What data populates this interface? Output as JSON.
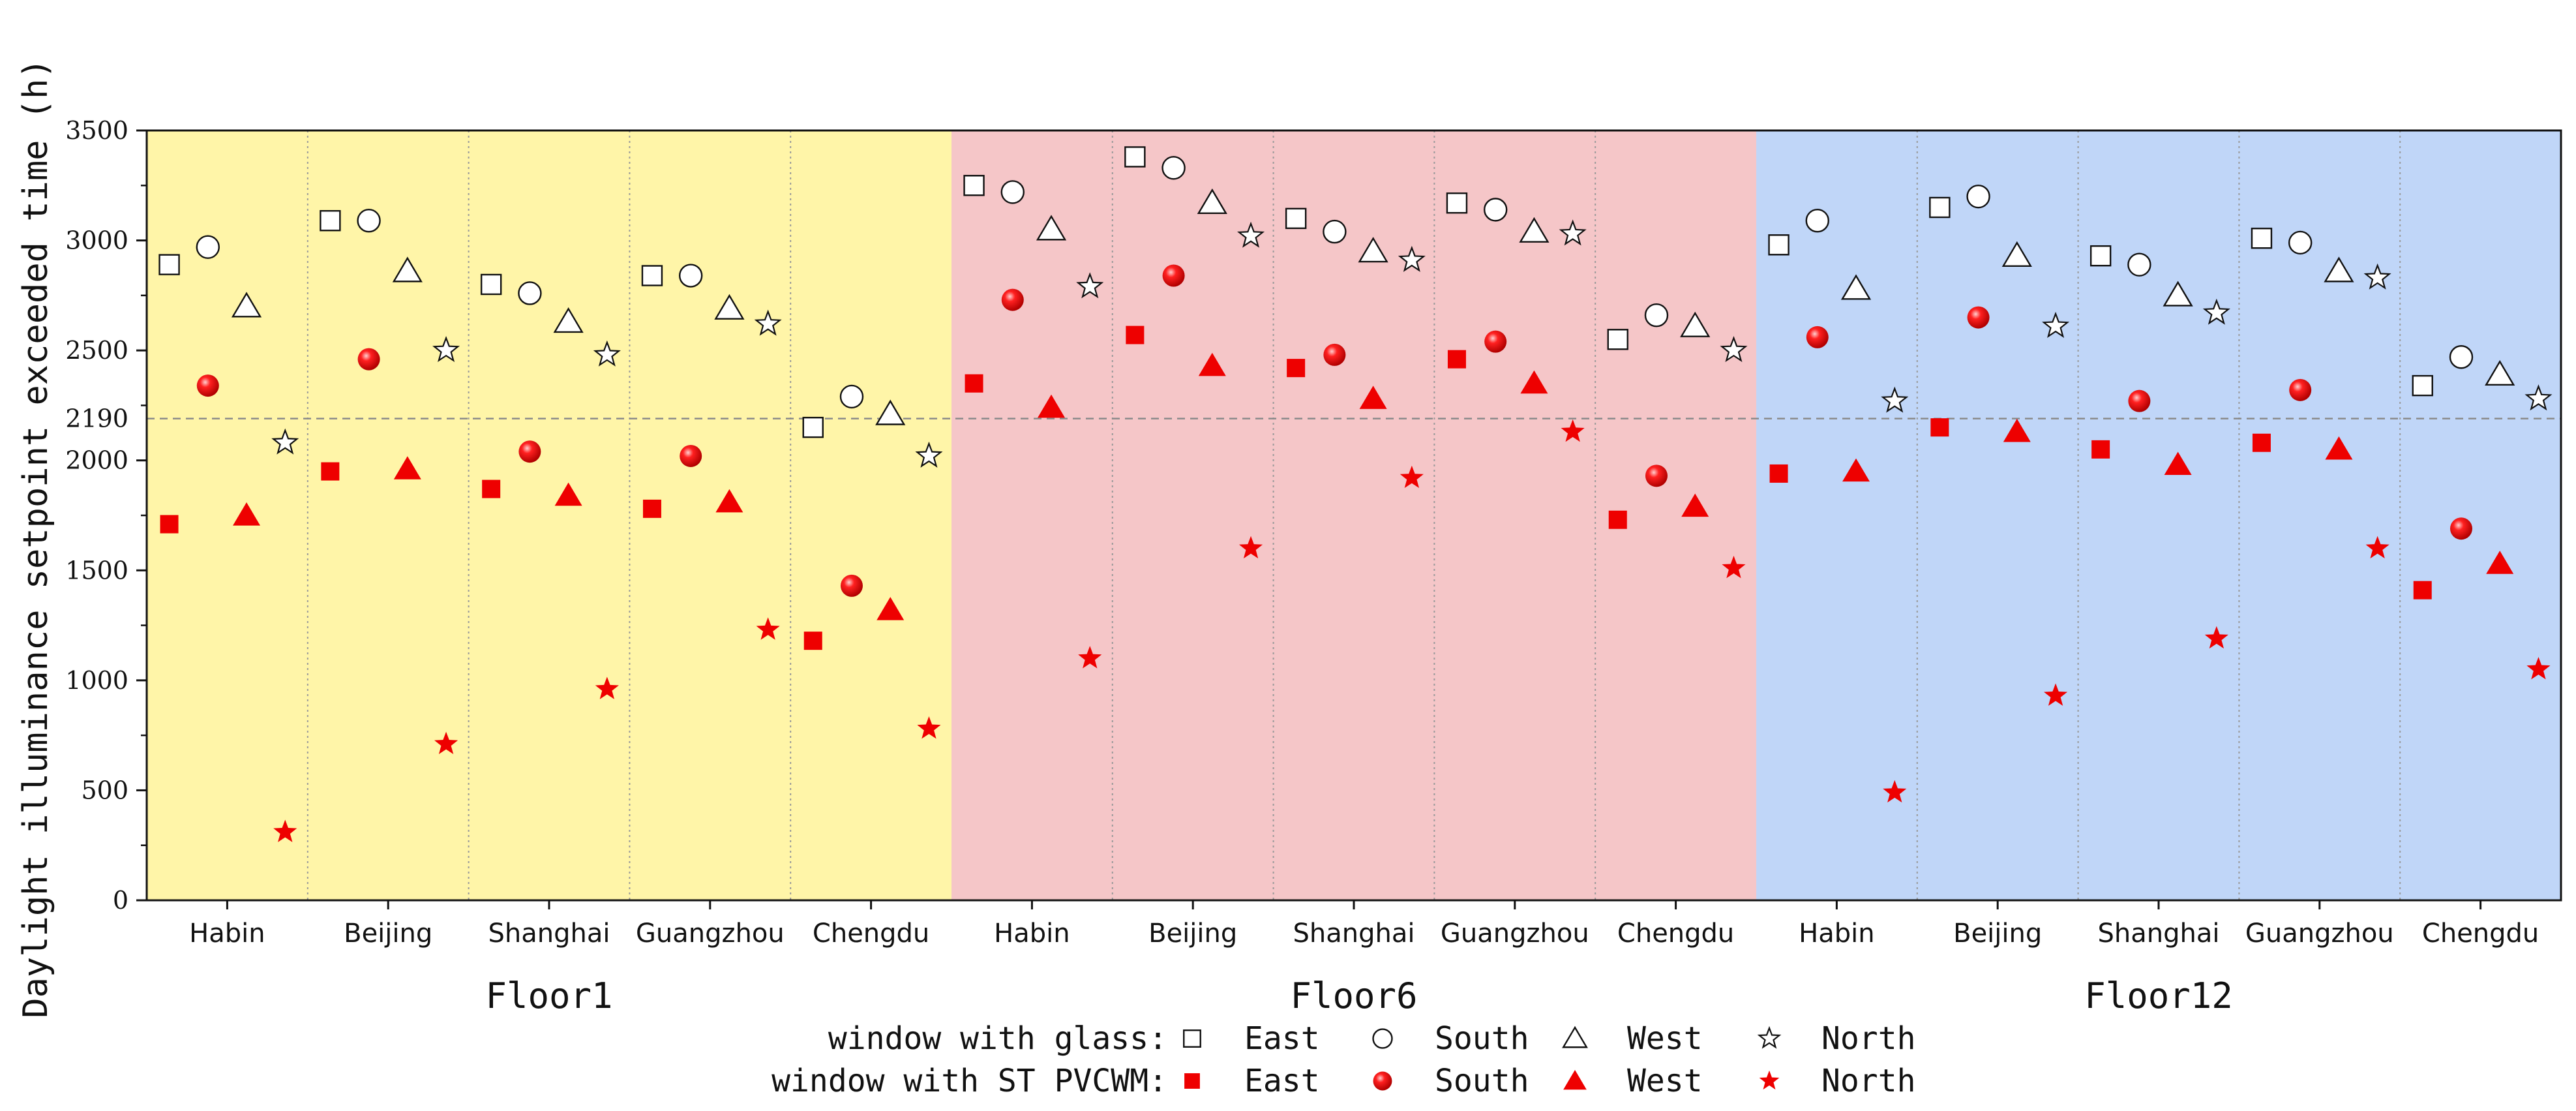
{
  "chart_data": {
    "type": "scatter",
    "ylabel": "Daylight illuminance setpoint exceeded time (h)",
    "ylim": [
      0,
      3500
    ],
    "yticks": [
      0,
      500,
      1000,
      1500,
      2000,
      2500,
      3000,
      3500
    ],
    "reference_line": {
      "value": 2190,
      "label": "2190"
    },
    "cities": [
      "Habin",
      "Beijing",
      "Shanghai",
      "Guangzhou",
      "Chengdu"
    ],
    "groups": [
      {
        "name": "Floor1",
        "background": "#fff5a8"
      },
      {
        "name": "Floor6",
        "background": "#f5c6c8"
      },
      {
        "name": "Floor12",
        "background": "#c0d6f8"
      }
    ],
    "orientations": [
      "East",
      "South",
      "West",
      "North"
    ],
    "series": [
      {
        "name": "window with glass",
        "color": "#ffffff",
        "values": [
          [
            [
              2890,
              2970,
              2700,
              2080
            ],
            [
              3090,
              3090,
              2860,
              2500
            ],
            [
              2800,
              2760,
              2630,
              2480
            ],
            [
              2840,
              2840,
              2690,
              2620
            ],
            [
              2150,
              2290,
              2210,
              2020
            ]
          ],
          [
            [
              3250,
              3220,
              3050,
              2790
            ],
            [
              3380,
              3330,
              3170,
              3020
            ],
            [
              3100,
              3040,
              2950,
              2910
            ],
            [
              3170,
              3140,
              3040,
              3030
            ],
            [
              2550,
              2660,
              2610,
              2500
            ]
          ],
          [
            [
              2980,
              3090,
              2780,
              2270
            ],
            [
              3150,
              3200,
              2930,
              2610
            ],
            [
              2930,
              2890,
              2750,
              2670
            ],
            [
              3010,
              2990,
              2860,
              2830
            ],
            [
              2340,
              2470,
              2390,
              2280
            ]
          ]
        ]
      },
      {
        "name": "window with ST PVCWM",
        "color": "#ee0000",
        "values": [
          [
            [
              1710,
              2340,
              1750,
              310
            ],
            [
              1950,
              2460,
              1960,
              710
            ],
            [
              1870,
              2040,
              1840,
              960
            ],
            [
              1780,
              2020,
              1810,
              1230
            ],
            [
              1180,
              1430,
              1320,
              780
            ]
          ],
          [
            [
              2350,
              2730,
              2240,
              1100
            ],
            [
              2570,
              2840,
              2430,
              1600
            ],
            [
              2420,
              2480,
              2280,
              1920
            ],
            [
              2460,
              2540,
              2350,
              2130
            ],
            [
              1730,
              1930,
              1790,
              1510
            ]
          ],
          [
            [
              1940,
              2560,
              1950,
              490
            ],
            [
              2150,
              2650,
              2130,
              930
            ],
            [
              2050,
              2270,
              1980,
              1190
            ],
            [
              2080,
              2320,
              2050,
              1600
            ],
            [
              1410,
              1690,
              1530,
              1050
            ]
          ]
        ]
      }
    ],
    "legend": {
      "position": "bottom-center",
      "rows": [
        {
          "label": "window with glass:",
          "items": [
            "East",
            "South",
            "West",
            "North"
          ]
        },
        {
          "label": "window with ST PVCWM:",
          "items": [
            "East",
            "South",
            "West",
            "North"
          ]
        }
      ]
    }
  }
}
